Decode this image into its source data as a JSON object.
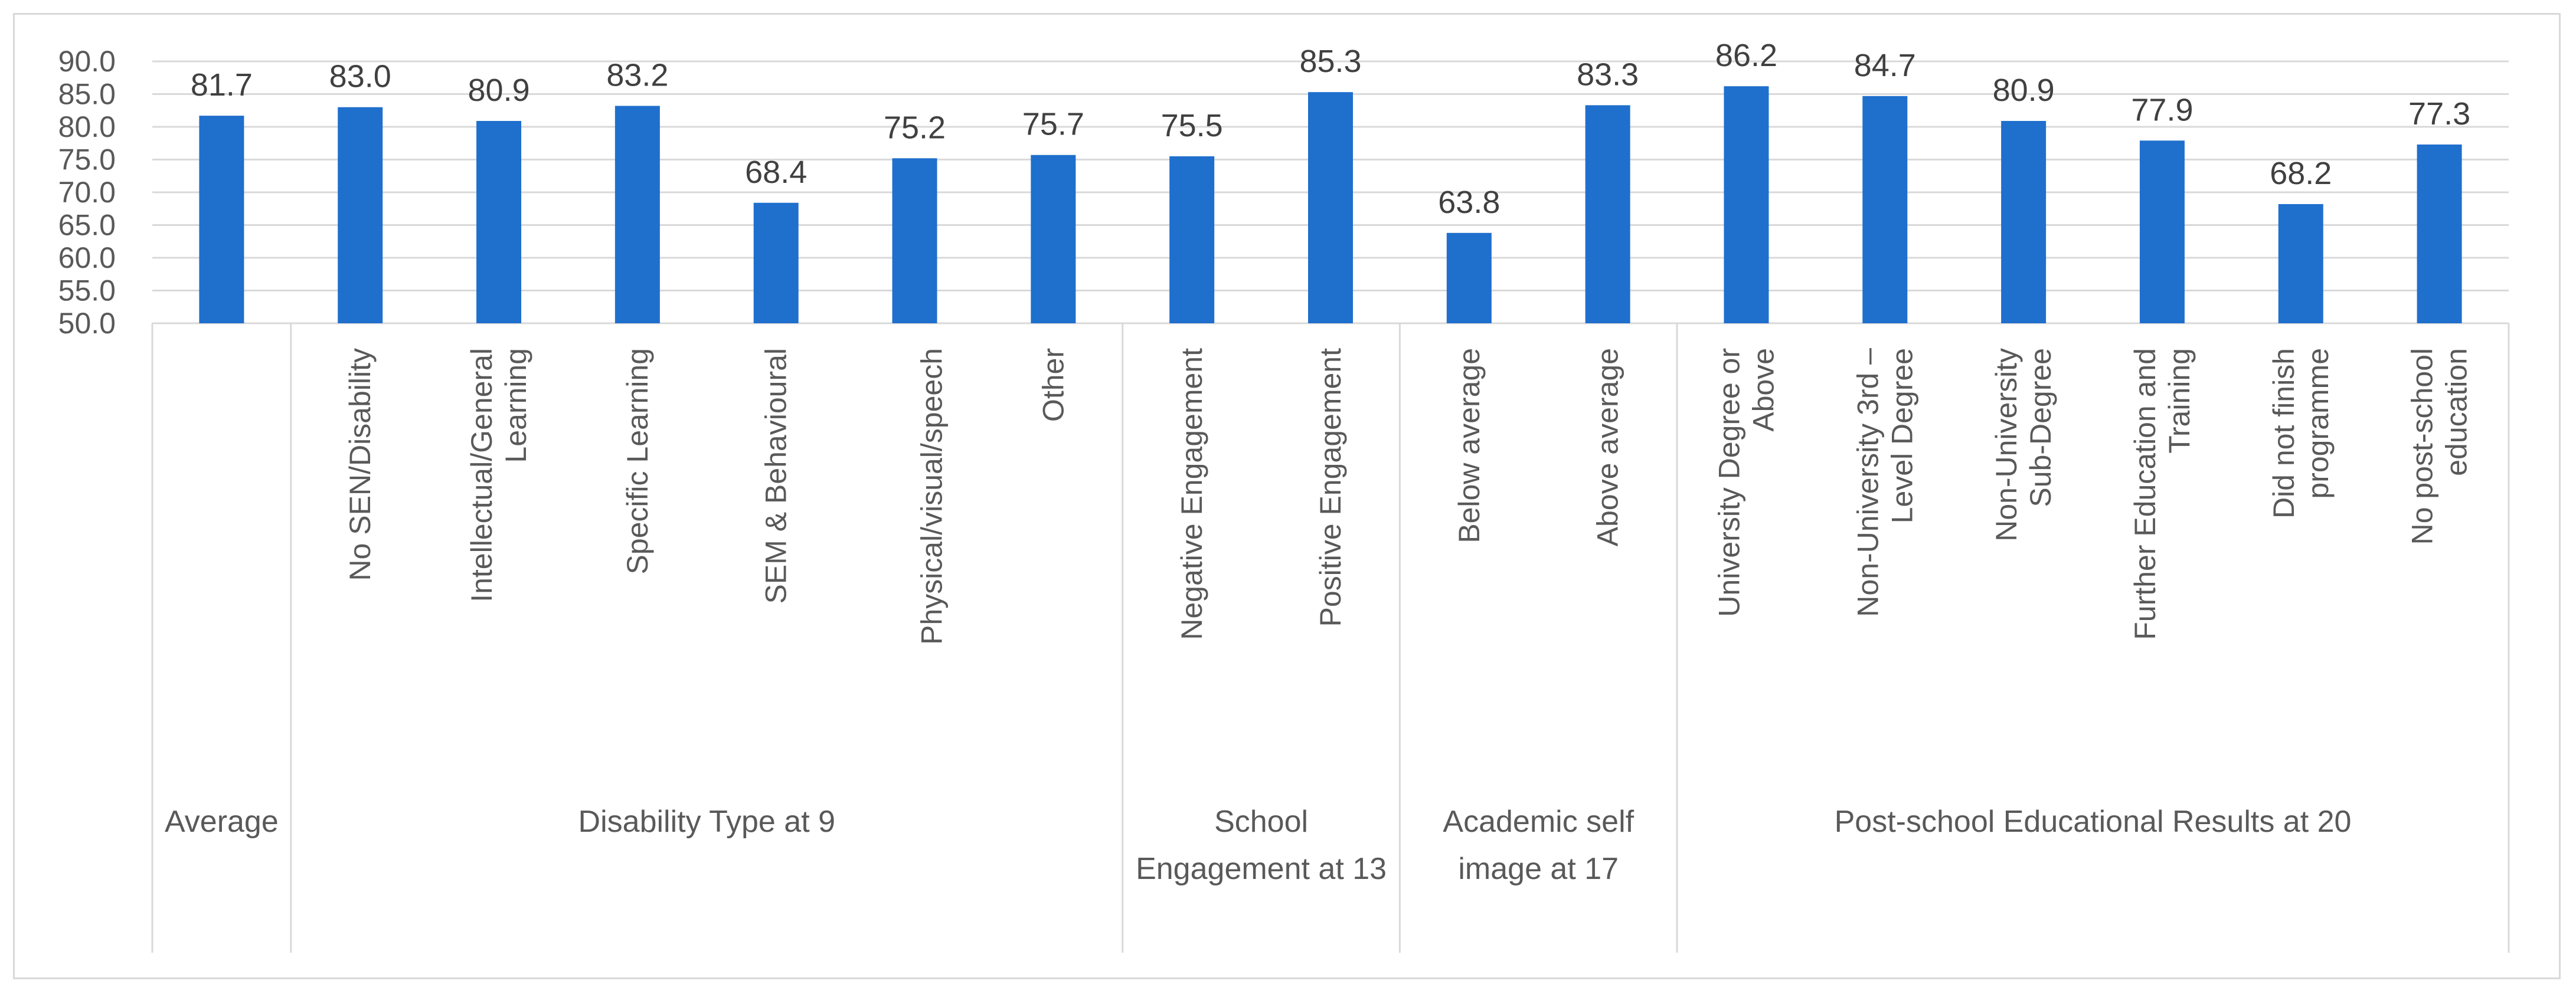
{
  "chart_data": {
    "type": "bar",
    "title": "",
    "xlabel": "",
    "ylabel": "",
    "ylim": [
      50,
      90
    ],
    "yticks": [
      50,
      55,
      60,
      65,
      70,
      75,
      80,
      85,
      90
    ],
    "ytick_labels": [
      "50.0",
      "55.0",
      "60.0",
      "65.0",
      "70.0",
      "75.0",
      "80.0",
      "85.0",
      "90.0"
    ],
    "grid": true,
    "bar_color": "#1f6fcd",
    "categories": [
      {
        "label": "",
        "group": 0
      },
      {
        "label": "No SEN/Disability",
        "group": 1
      },
      {
        "label": "Intellectual/General Learning",
        "group": 1
      },
      {
        "label": "Specific Learning",
        "group": 1
      },
      {
        "label": "SEM & Behavioural",
        "group": 1
      },
      {
        "label": "Physical/visual/speech",
        "group": 1
      },
      {
        "label": "Other",
        "group": 1
      },
      {
        "label": "Negative Engagement",
        "group": 2
      },
      {
        "label": "Positive Engagement",
        "group": 2
      },
      {
        "label": "Below average",
        "group": 3
      },
      {
        "label": "Above average",
        "group": 3
      },
      {
        "label": "University Degree or Above",
        "group": 4
      },
      {
        "label": "Non-University 3rd – Level Degree",
        "group": 4
      },
      {
        "label": "Non-University Sub-Degree",
        "group": 4
      },
      {
        "label": "Further Education and Training",
        "group": 4
      },
      {
        "label": "Did not finish programme",
        "group": 4
      },
      {
        "label": "No post-school education",
        "group": 4
      }
    ],
    "values": [
      81.7,
      83.0,
      80.9,
      83.2,
      68.4,
      75.2,
      75.7,
      75.5,
      85.3,
      63.8,
      83.3,
      86.2,
      84.7,
      80.9,
      77.9,
      68.2,
      77.3
    ],
    "value_labels": [
      "81.7",
      "83.0",
      "80.9",
      "83.2",
      "68.4",
      "75.2",
      "75.7",
      "75.5",
      "85.3",
      "63.8",
      "83.3",
      "86.2",
      "84.7",
      "80.9",
      "77.9",
      "68.2",
      "77.3"
    ],
    "groups": [
      {
        "label": "Average"
      },
      {
        "label": "Disability Type at 9"
      },
      {
        "label": "School Engagement at 13"
      },
      {
        "label": "Academic self image at 17"
      },
      {
        "label": "Post-school Educational Results at 20"
      }
    ]
  }
}
